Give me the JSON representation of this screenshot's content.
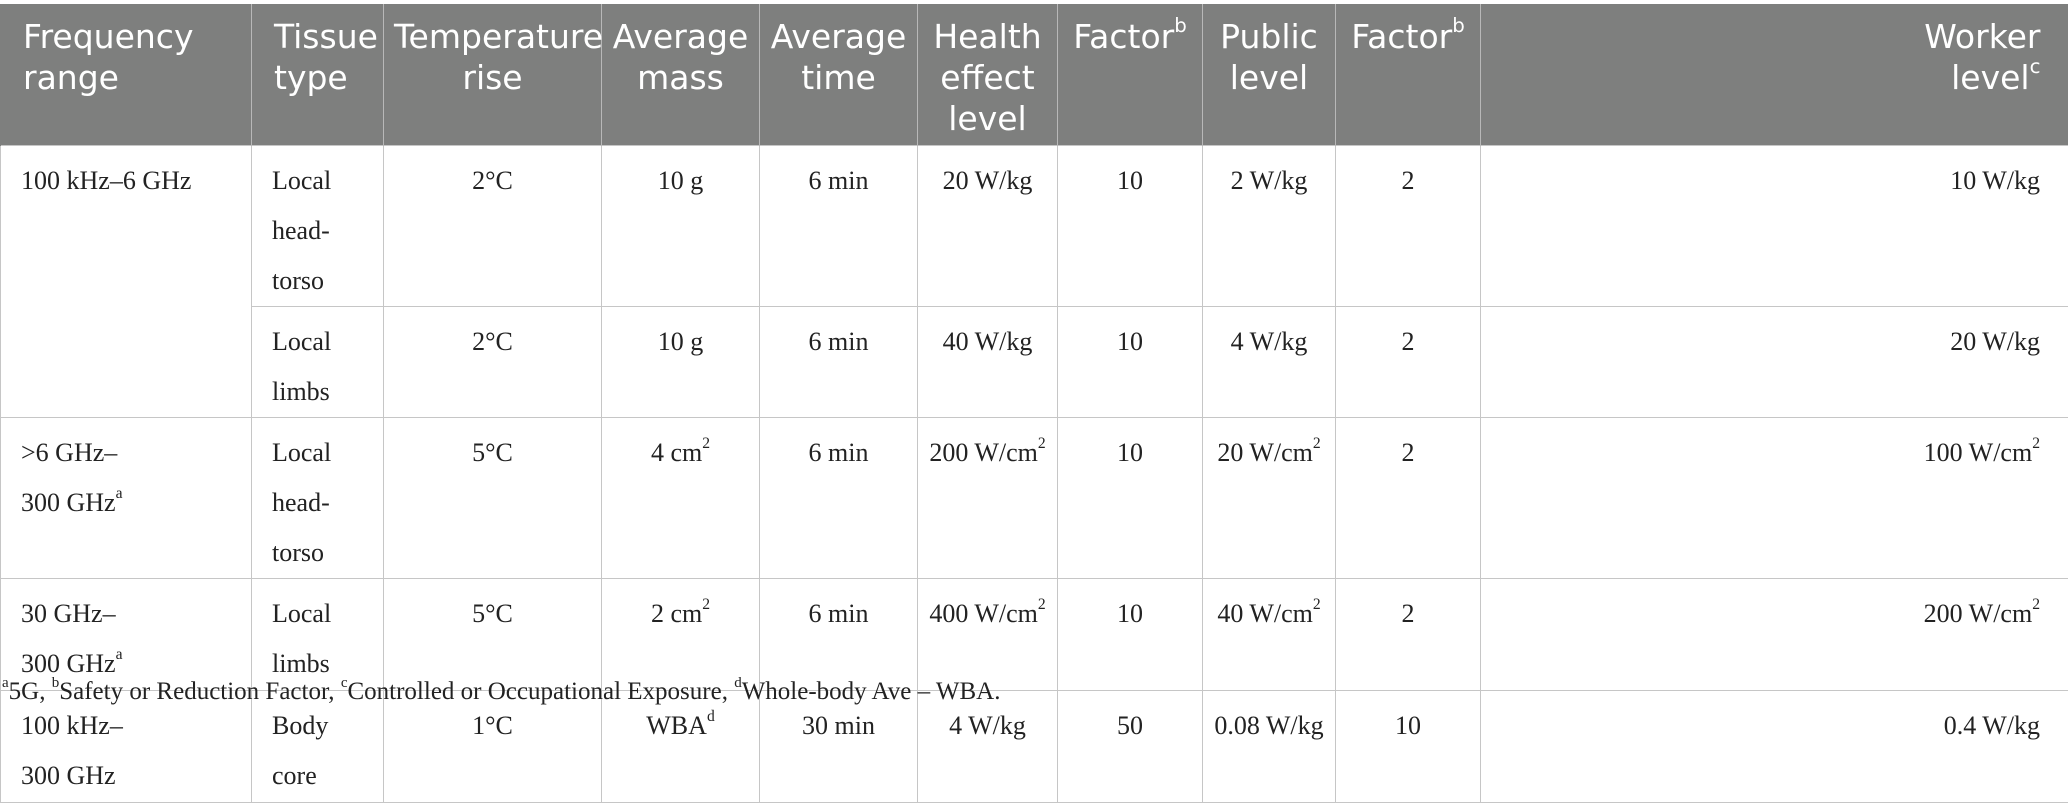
{
  "header": {
    "col1": [
      "Frequency",
      "range"
    ],
    "col2": [
      "Tissue",
      "type"
    ],
    "col3": [
      "Temperature",
      "rise"
    ],
    "col4": [
      "Average",
      "mass"
    ],
    "col5": [
      "Average",
      "time"
    ],
    "col6": [
      "Health",
      "effect",
      "level"
    ],
    "col7": "Factor",
    "col7_sup": "b",
    "col8": [
      "Public",
      "level"
    ],
    "col9": "Factor",
    "col9_sup": "b",
    "col10": [
      "Worker",
      "level"
    ],
    "col10_sup": "c"
  },
  "rows": {
    "r1": {
      "freq": "100 kHz–6 GHz",
      "tissue1": "Local",
      "tissue2": "head-torso",
      "temp": "2°C",
      "mass": "10 g",
      "time": "6 min",
      "health": "20 W/kg",
      "factor": "10",
      "public": "2 W/kg",
      "factor2": "2",
      "worker": "10 W/kg"
    },
    "r2": {
      "tissue": "Local limbs",
      "temp": "2°C",
      "mass": "10 g",
      "time": "6 min",
      "health": "40 W/kg",
      "factor": "10",
      "public": "4 W/kg",
      "factor2": "2",
      "worker": "20 W/kg"
    },
    "r3": {
      "freq1": ">6 GHz–",
      "freq2": "300 GHz",
      "freq_sup": "a",
      "tissue1": "Local",
      "tissue2": "head-torso",
      "temp": "5°C",
      "mass": "4 cm",
      "mass_sup": "2",
      "time": "6 min",
      "health": "200 W/cm",
      "health_sup": "2",
      "factor": "10",
      "public": "20 W/cm",
      "public_sup": "2",
      "factor2": "2",
      "worker": "100 W/cm",
      "worker_sup": "2"
    },
    "r4": {
      "freq1": "30 GHz–",
      "freq2": "300 GHz",
      "freq_sup": "a",
      "tissue": "Local limbs",
      "temp": "5°C",
      "mass": "2 cm",
      "mass_sup": "2",
      "time": "6 min",
      "health": "400 W/cm",
      "health_sup": "2",
      "factor": "10",
      "public": "40 W/cm",
      "public_sup": "2",
      "factor2": "2",
      "worker": "200 W/cm",
      "worker_sup": "2"
    },
    "r5": {
      "freq1": "100 kHz–",
      "freq2": "300 GHz",
      "tissue": "Body core",
      "temp": "1°C",
      "mass": "WBA",
      "mass_sup": "d",
      "time": "30 min",
      "health": "4 W/kg",
      "factor": "50",
      "public": "0.08 W/kg",
      "factor2": "10",
      "worker": "0.4 W/kg"
    }
  },
  "footnote": {
    "a_mark": "a",
    "a_text": "5G, ",
    "b_mark": "b",
    "b_text": "Safety or Reduction Factor, ",
    "c_mark": "c",
    "c_text": "Controlled or Occupational Exposure, ",
    "d_mark": "d",
    "d_text": "Whole-body Ave – WBA."
  }
}
